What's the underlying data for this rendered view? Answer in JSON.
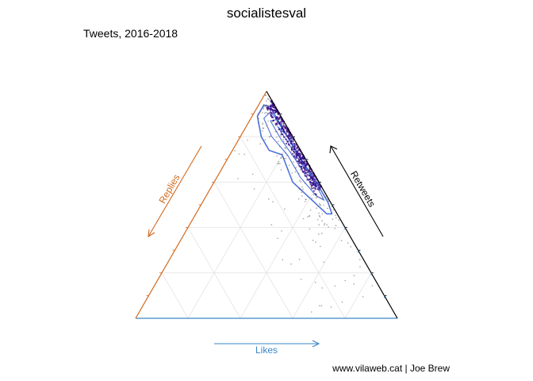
{
  "chart_data": {
    "type": "scatter",
    "subtype": "ternary",
    "title": "socialistesval",
    "subtitle": "Tweets, 2016-2018",
    "caption": "www.vilaweb.cat | Joe Brew",
    "axes": {
      "bottom": {
        "label": "Likes",
        "color": "#3a87c8"
      },
      "left": {
        "label": "Replies",
        "color": "#d2691e"
      },
      "right": {
        "label": "Retweets",
        "color": "#000000"
      }
    },
    "grid": true,
    "colors": {
      "density_contour": "#3b63d6",
      "point_dense": "#3a0a8a",
      "point_sparse": "#555555",
      "grid": "#e4e4e4"
    },
    "point_groups": [
      {
        "name": "ridge",
        "count": 420,
        "likes": [
          0.04,
          0.42
        ],
        "replies": [
          0.0,
          0.04
        ]
      },
      {
        "name": "halo",
        "count": 160,
        "likes": [
          0.02,
          0.55
        ],
        "replies": [
          0.0,
          0.12
        ]
      },
      {
        "name": "sparse",
        "count": 70,
        "likes": [
          0.0,
          0.85
        ],
        "replies": [
          0.0,
          0.32
        ]
      }
    ],
    "contours": [
      [
        [
          0.02,
          0.09
        ],
        [
          0.08,
          0.12
        ],
        [
          0.14,
          0.12
        ],
        [
          0.2,
          0.08
        ],
        [
          0.3,
          0.1
        ],
        [
          0.4,
          0.07
        ],
        [
          0.5,
          0.04
        ],
        [
          0.52,
          0.02
        ],
        [
          0.48,
          0.01
        ],
        [
          0.38,
          0.01
        ],
        [
          0.26,
          0.02
        ],
        [
          0.14,
          0.02
        ],
        [
          0.05,
          0.02
        ],
        [
          0.02,
          0.04
        ]
      ],
      [
        [
          0.05,
          0.07
        ],
        [
          0.12,
          0.08
        ],
        [
          0.22,
          0.06
        ],
        [
          0.32,
          0.06
        ],
        [
          0.42,
          0.04
        ],
        [
          0.46,
          0.02
        ],
        [
          0.36,
          0.015
        ],
        [
          0.24,
          0.02
        ],
        [
          0.12,
          0.02
        ],
        [
          0.06,
          0.03
        ]
      ],
      [
        [
          0.08,
          0.05
        ],
        [
          0.16,
          0.05
        ],
        [
          0.26,
          0.04
        ],
        [
          0.36,
          0.035
        ],
        [
          0.4,
          0.02
        ],
        [
          0.3,
          0.015
        ],
        [
          0.18,
          0.02
        ],
        [
          0.1,
          0.025
        ]
      ],
      [
        [
          0.12,
          0.035
        ],
        [
          0.22,
          0.03
        ],
        [
          0.32,
          0.025
        ],
        [
          0.28,
          0.015
        ],
        [
          0.18,
          0.018
        ]
      ]
    ]
  }
}
